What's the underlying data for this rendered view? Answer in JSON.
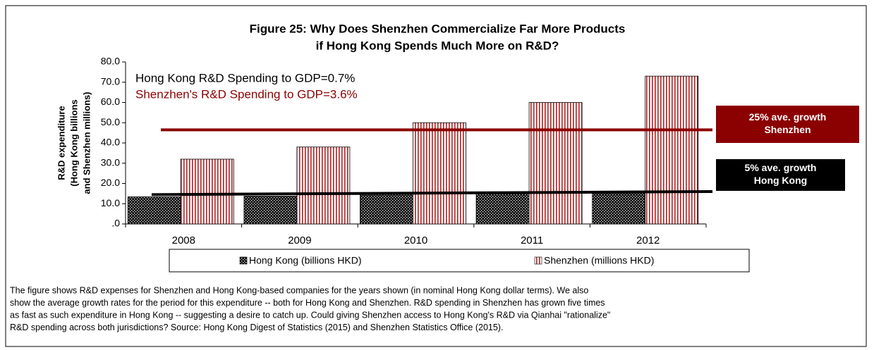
{
  "chart_data": {
    "type": "bar",
    "title": [
      "Figure 25:  Why Does Shenzhen Commercialize Far More Products",
      "if Hong Kong Spends Much More on R&D?"
    ],
    "y_label": [
      "R&D expenditure",
      "(Hong Kong billions",
      "and Shenzhen millions)"
    ],
    "categories": [
      "2008",
      "2009",
      "2010",
      "2011",
      "2012"
    ],
    "series": [
      {
        "name": "Hong Kong (billions HKD)",
        "color": "#000000",
        "values": [
          13.4,
          13.7,
          14.6,
          15.2,
          15.6
        ]
      },
      {
        "name": "Shenzhen (millions HKD)",
        "color": "#b22222",
        "values": [
          32,
          38,
          50,
          60,
          73
        ]
      }
    ],
    "ylim": [
      0,
      80
    ],
    "yticks": [
      {
        "value": 0,
        "label": ".0"
      },
      {
        "value": 10,
        "label": "10.0"
      },
      {
        "value": 20,
        "label": "20.0"
      },
      {
        "value": 30,
        "label": "30.0"
      },
      {
        "value": 40,
        "label": "40.0"
      },
      {
        "value": 50,
        "label": "50.0"
      },
      {
        "value": 60,
        "label": "60.0"
      },
      {
        "value": 70,
        "label": "70.0"
      },
      {
        "value": 80,
        "label": "80.0"
      }
    ],
    "annotations": [
      {
        "text": "Hong Kong R&D Spending to GDP=0.7%",
        "color": "#000000"
      },
      {
        "text": "Shenzhen's R&D Spending to GDP=3.6%",
        "color": "#8b0000"
      }
    ],
    "trend_lines": [
      {
        "label": [
          "25% ave. growth",
          "Shenzhen"
        ],
        "color": "#8b0000",
        "values": [
          46.5,
          46.5
        ]
      },
      {
        "label": [
          "5% ave. growth",
          "Hong Kong"
        ],
        "color": "#000000",
        "values": [
          14.5,
          16
        ]
      }
    ],
    "caption": [
      "The figure shows R&D expenses for Shenzhen and Hong Kong-based companies for the years shown (in nominal Hong Kong dollar terms). We also",
      "show the average growth rates for the period for this expenditure -- both for Hong Kong and Shenzhen. R&D spending in Shenzhen has grown five times",
      "as fast as such expenditure in Hong Kong -- suggesting a desire to catch up. Could giving Shenzhen access to Hong Kong's R&D via Qianhai \"rationalize\"",
      "R&D spending across both jurisdictions? Source: Hong Kong Digest of Statistics (2015) and Shenzhen Statistics Office (2015)."
    ]
  }
}
